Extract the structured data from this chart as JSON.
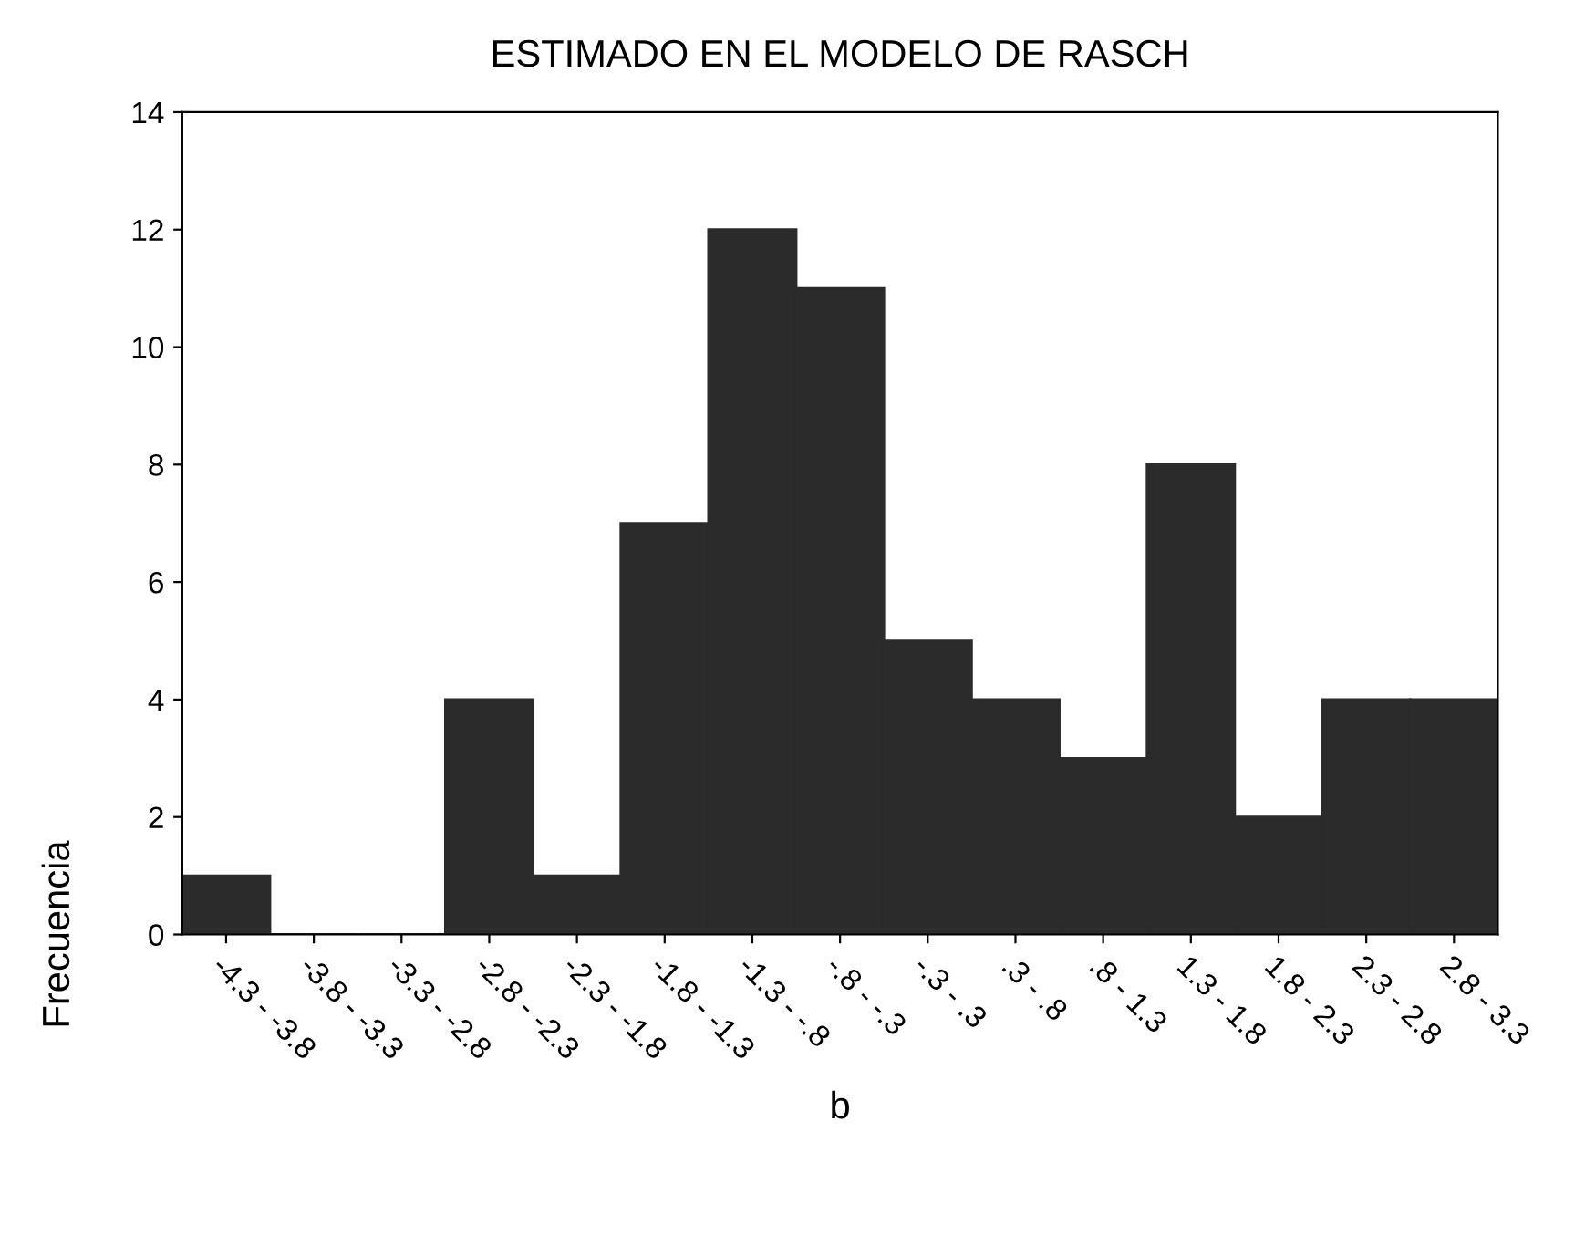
{
  "chart_data": {
    "type": "bar",
    "title": "ESTIMADO EN EL MODELO DE RASCH",
    "xlabel": "b",
    "ylabel": "Frecuencia",
    "categories": [
      "-4.3 - -3.8",
      "-3.8 - -3.3",
      "-3.3 - -2.8",
      "-2.8 - -2.3",
      "-2.3 - -1.8",
      "-1.8 - -1.3",
      "-1.3 - -.8",
      "-.8 - -.3",
      "-.3 - .3",
      ".3 - .8",
      ".8 - 1.3",
      "1.3 - 1.8",
      "1.8 - 2.3",
      "2.3 - 2.8",
      "2.8 - 3.3"
    ],
    "values": [
      1,
      0,
      0,
      4,
      1,
      7,
      12,
      11,
      5,
      4,
      3,
      8,
      2,
      4,
      4
    ],
    "color": "#2b2b2b",
    "ylim": [
      0,
      14
    ],
    "yticks": [
      0,
      2,
      4,
      6,
      8,
      10,
      12,
      14
    ],
    "grid": false,
    "legend": false
  }
}
